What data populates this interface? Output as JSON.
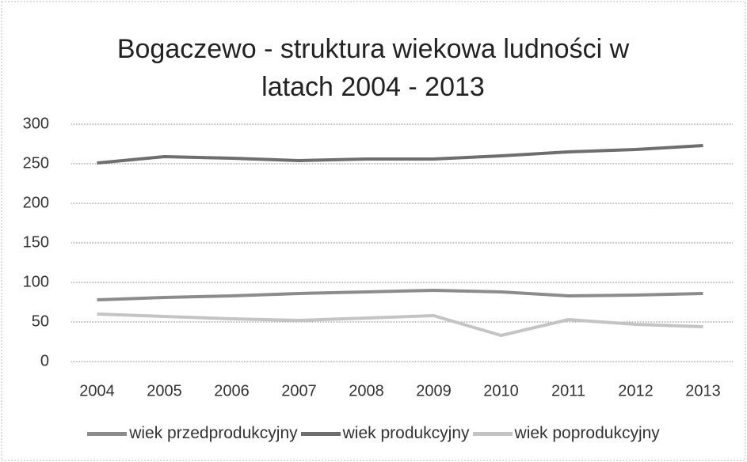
{
  "chart_data": {
    "type": "line",
    "title": "Bogaczewo - struktura wiekowa ludności w latach 2004 - 2013",
    "categories": [
      "2004",
      "2005",
      "2006",
      "2007",
      "2008",
      "2009",
      "2010",
      "2011",
      "2012",
      "2013"
    ],
    "series": [
      {
        "name": "wiek przedprodukcyjny",
        "color": "#8c8c8c",
        "values": [
          78,
          81,
          83,
          86,
          88,
          90,
          88,
          83,
          84,
          86
        ]
      },
      {
        "name": "wiek produkcyjny",
        "color": "#6e6e6e",
        "values": [
          251,
          259,
          257,
          254,
          256,
          256,
          260,
          265,
          268,
          273
        ]
      },
      {
        "name": "wiek poprodukcyjny",
        "color": "#c4c4c4",
        "values": [
          60,
          57,
          54,
          52,
          55,
          58,
          33,
          53,
          47,
          44
        ]
      }
    ],
    "ylim": [
      0,
      300
    ],
    "yticks": [
      0,
      50,
      100,
      150,
      200,
      250,
      300
    ],
    "grid": true,
    "legend": "bottom"
  }
}
